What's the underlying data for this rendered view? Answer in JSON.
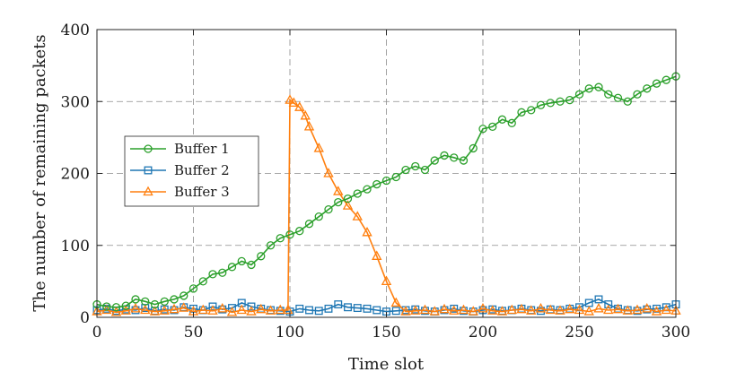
{
  "chart_data": {
    "type": "line",
    "title": "",
    "xlabel": "Time slot",
    "ylabel": "The number of remaining packets",
    "xlim": [
      0,
      300
    ],
    "ylim": [
      0,
      400
    ],
    "xticks": [
      0,
      50,
      100,
      150,
      200,
      250,
      300
    ],
    "yticks": [
      0,
      100,
      200,
      300,
      400
    ],
    "xtick_labels": [
      "0",
      "50",
      "100",
      "150",
      "200",
      "250",
      "300"
    ],
    "ytick_labels": [
      "0",
      "100",
      "200",
      "300",
      "400"
    ],
    "grid": true,
    "legend_position": "center-left",
    "series": [
      {
        "name": "Buffer 1",
        "color": "#2ca02c",
        "marker": "circle",
        "x": [
          0,
          5,
          10,
          15,
          20,
          25,
          30,
          35,
          40,
          45,
          50,
          55,
          60,
          65,
          70,
          75,
          80,
          85,
          90,
          95,
          100,
          105,
          110,
          115,
          120,
          125,
          130,
          135,
          140,
          145,
          150,
          155,
          160,
          165,
          170,
          175,
          180,
          185,
          190,
          195,
          200,
          205,
          210,
          215,
          220,
          225,
          230,
          235,
          240,
          245,
          250,
          255,
          260,
          265,
          270,
          275,
          280,
          285,
          290,
          295,
          300
        ],
        "values": [
          18,
          15,
          14,
          16,
          25,
          22,
          18,
          22,
          25,
          30,
          40,
          50,
          60,
          62,
          70,
          78,
          73,
          85,
          100,
          110,
          115,
          120,
          130,
          140,
          150,
          160,
          165,
          172,
          178,
          185,
          190,
          195,
          205,
          210,
          205,
          218,
          225,
          222,
          218,
          235,
          262,
          265,
          275,
          270,
          285,
          288,
          295,
          298,
          300,
          302,
          310,
          318,
          320,
          310,
          305,
          300,
          310,
          318,
          325,
          330,
          335
        ]
      },
      {
        "name": "Buffer 2",
        "color": "#1f77b4",
        "marker": "square",
        "x": [
          0,
          5,
          10,
          15,
          20,
          25,
          30,
          35,
          40,
          45,
          50,
          55,
          60,
          65,
          70,
          75,
          80,
          85,
          90,
          95,
          100,
          105,
          110,
          115,
          120,
          125,
          130,
          135,
          140,
          145,
          150,
          155,
          160,
          165,
          170,
          175,
          180,
          185,
          190,
          195,
          200,
          205,
          210,
          215,
          220,
          225,
          230,
          235,
          240,
          245,
          250,
          255,
          260,
          265,
          270,
          275,
          280,
          285,
          290,
          295,
          300
        ],
        "values": [
          10,
          12,
          9,
          11,
          10,
          13,
          9,
          11,
          10,
          14,
          12,
          10,
          15,
          11,
          13,
          20,
          15,
          12,
          10,
          9,
          8,
          12,
          10,
          9,
          12,
          18,
          14,
          13,
          12,
          10,
          8,
          9,
          10,
          11,
          9,
          8,
          10,
          12,
          9,
          8,
          10,
          11,
          9,
          10,
          12,
          10,
          9,
          11,
          10,
          12,
          14,
          20,
          25,
          18,
          12,
          10,
          9,
          11,
          12,
          14,
          18
        ]
      },
      {
        "name": "Buffer 3",
        "color": "#ff7f0e",
        "marker": "triangle",
        "x": [
          0,
          5,
          10,
          15,
          20,
          25,
          30,
          35,
          40,
          45,
          50,
          55,
          60,
          65,
          70,
          75,
          80,
          85,
          90,
          95,
          99,
          100,
          102,
          105,
          108,
          110,
          115,
          120,
          125,
          130,
          135,
          140,
          145,
          150,
          155,
          160,
          165,
          170,
          175,
          180,
          185,
          190,
          195,
          200,
          205,
          210,
          215,
          220,
          225,
          230,
          235,
          240,
          245,
          250,
          255,
          260,
          265,
          270,
          275,
          280,
          285,
          290,
          295,
          300
        ],
        "values": [
          8,
          10,
          7,
          9,
          12,
          10,
          8,
          9,
          11,
          13,
          8,
          10,
          9,
          12,
          7,
          10,
          8,
          11,
          9,
          10,
          10,
          302,
          298,
          292,
          280,
          265,
          235,
          200,
          175,
          155,
          140,
          118,
          85,
          50,
          20,
          8,
          9,
          10,
          8,
          11,
          9,
          10,
          8,
          12,
          9,
          8,
          10,
          11,
          9,
          12,
          10,
          9,
          11,
          10,
          8,
          12,
          10,
          11,
          9,
          10,
          12,
          8,
          10,
          9
        ]
      }
    ]
  }
}
